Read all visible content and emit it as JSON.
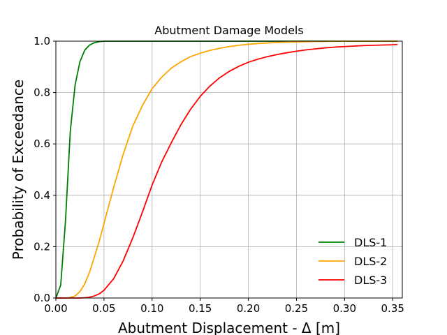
{
  "chart_data": {
    "type": "line",
    "title": "Abutment Damage Models",
    "xlabel": "Abutment Displacement - Δ [m]",
    "ylabel": "Probability of Exceedance",
    "xlim": [
      0.0,
      0.36
    ],
    "ylim": [
      0.0,
      1.0
    ],
    "xticks": [
      "0.00",
      "0.05",
      "0.10",
      "0.15",
      "0.20",
      "0.25",
      "0.30",
      "0.35"
    ],
    "yticks": [
      "0.0",
      "0.2",
      "0.4",
      "0.6",
      "0.8",
      "1.0"
    ],
    "grid": true,
    "legend_position": "lower-right",
    "x": [
      0.0,
      0.005,
      0.01,
      0.015,
      0.02,
      0.025,
      0.03,
      0.035,
      0.04,
      0.045,
      0.05,
      0.06,
      0.07,
      0.08,
      0.09,
      0.1,
      0.11,
      0.12,
      0.13,
      0.14,
      0.15,
      0.16,
      0.17,
      0.18,
      0.19,
      0.2,
      0.21,
      0.22,
      0.23,
      0.24,
      0.25,
      0.26,
      0.27,
      0.28,
      0.29,
      0.3,
      0.31,
      0.32,
      0.33,
      0.34,
      0.35,
      0.355
    ],
    "series": [
      {
        "name": "DLS-1",
        "color": "#008000",
        "values": [
          0.0,
          0.05,
          0.3,
          0.65,
          0.83,
          0.92,
          0.965,
          0.985,
          0.994,
          0.998,
          1.0,
          1.0,
          1.0,
          1.0,
          1.0,
          1.0,
          1.0,
          1.0,
          1.0,
          1.0,
          1.0,
          1.0,
          1.0,
          1.0,
          1.0,
          1.0,
          1.0,
          1.0,
          1.0,
          1.0,
          1.0,
          1.0,
          1.0,
          1.0,
          1.0,
          1.0,
          1.0,
          1.0,
          1.0,
          1.0,
          1.0,
          1.0
        ]
      },
      {
        "name": "DLS-2",
        "color": "#FFA500",
        "values": [
          0.0,
          0.0,
          0.0,
          0.002,
          0.008,
          0.025,
          0.055,
          0.1,
          0.16,
          0.22,
          0.29,
          0.43,
          0.56,
          0.67,
          0.75,
          0.815,
          0.86,
          0.895,
          0.92,
          0.94,
          0.953,
          0.964,
          0.972,
          0.979,
          0.984,
          0.988,
          0.991,
          0.993,
          0.995,
          0.996,
          0.997,
          0.998,
          0.999,
          0.999,
          1.0,
          1.0,
          1.0,
          1.0,
          1.0,
          1.0,
          1.0,
          1.0
        ]
      },
      {
        "name": "DLS-3",
        "color": "#FF0000",
        "values": [
          0.0,
          0.0,
          0.0,
          0.0,
          0.0,
          0.0,
          0.001,
          0.003,
          0.008,
          0.016,
          0.03,
          0.075,
          0.145,
          0.235,
          0.335,
          0.44,
          0.53,
          0.605,
          0.675,
          0.735,
          0.785,
          0.825,
          0.857,
          0.882,
          0.902,
          0.918,
          0.93,
          0.94,
          0.948,
          0.955,
          0.961,
          0.966,
          0.97,
          0.974,
          0.977,
          0.979,
          0.981,
          0.983,
          0.984,
          0.985,
          0.986,
          0.987
        ]
      }
    ]
  }
}
